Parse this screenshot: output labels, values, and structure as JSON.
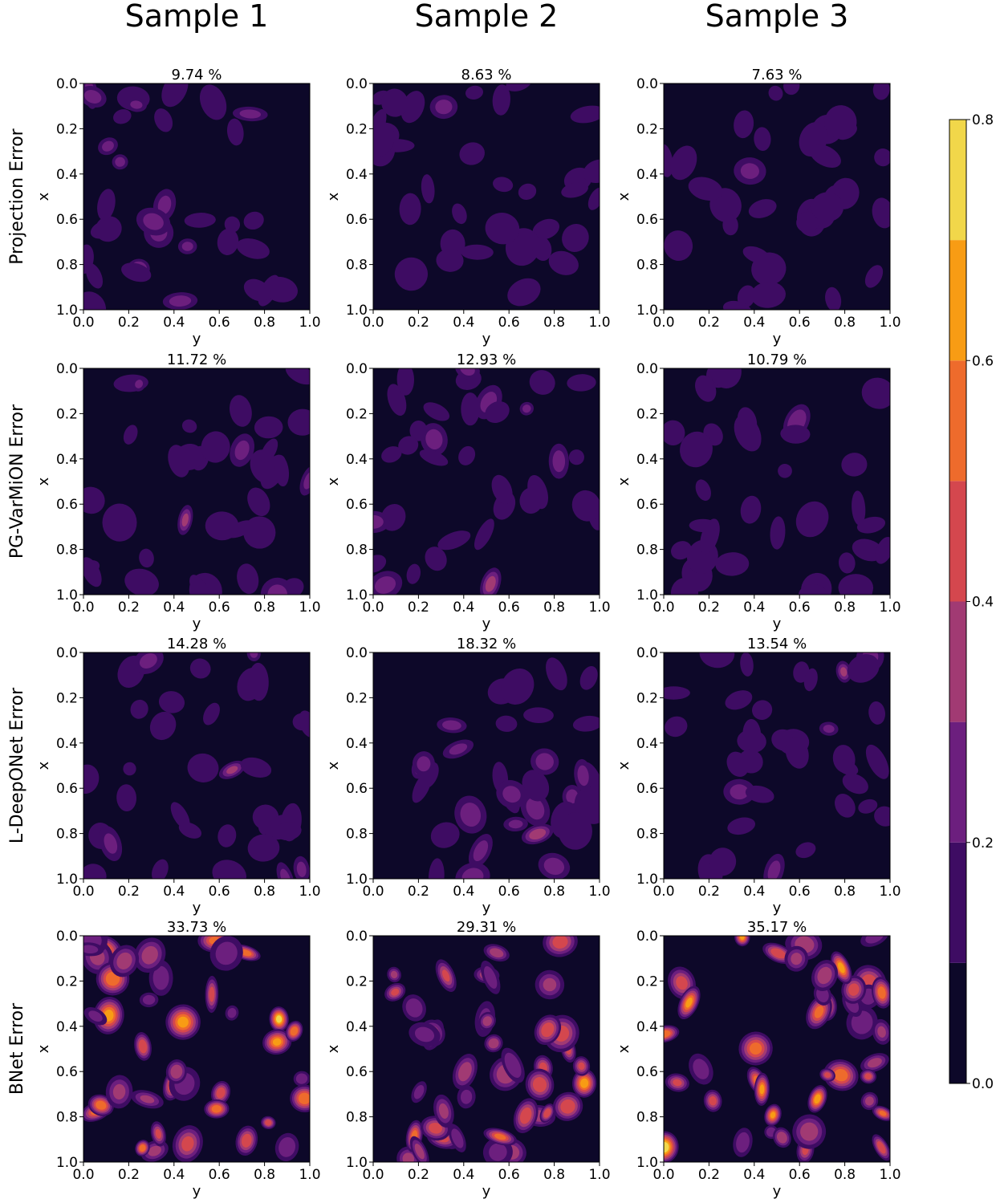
{
  "column_titles": [
    "Sample 1",
    "Sample 2",
    "Sample 3"
  ],
  "row_titles": [
    "Projection Error",
    "PG-VarMiON Error",
    "L-DeepONet Error",
    "BNet Error"
  ],
  "colorbar": {
    "ticks": [
      "0.0",
      "0.2",
      "0.4",
      "0.6",
      "0.8"
    ],
    "levels": [
      0.0,
      0.1,
      0.2,
      0.3,
      0.4,
      0.5,
      0.6,
      0.7,
      0.8
    ],
    "colors": [
      "#0d0829",
      "#3e0c63",
      "#6c1f7e",
      "#a13a73",
      "#d4474e",
      "#ee6b2c",
      "#f89c14",
      "#f1d74a",
      "#fcfda8"
    ],
    "range": [
      0.0,
      0.8
    ]
  },
  "chart_data": {
    "type": "heatmap",
    "xlabel": "y",
    "ylabel": "x",
    "xlim": [
      0.0,
      1.0
    ],
    "ylim": [
      1.0,
      0.0
    ],
    "x_ticks": [
      "0.0",
      "0.2",
      "0.4",
      "0.6",
      "0.8",
      "1.0"
    ],
    "y_ticks": [
      "0.0",
      "0.2",
      "0.4",
      "0.6",
      "0.8",
      "1.0"
    ],
    "panels": [
      {
        "row": "Projection Error",
        "column": "Sample 1",
        "title": "9.74 %",
        "error_percent": 9.74,
        "peak_value": 0.33
      },
      {
        "row": "Projection Error",
        "column": "Sample 2",
        "title": "8.63 %",
        "error_percent": 8.63,
        "peak_value": 0.22
      },
      {
        "row": "Projection Error",
        "column": "Sample 3",
        "title": "7.63 %",
        "error_percent": 7.63,
        "peak_value": 0.2
      },
      {
        "row": "PG-VarMiON Error",
        "column": "Sample 1",
        "title": "11.72 %",
        "error_percent": 11.72,
        "peak_value": 0.3
      },
      {
        "row": "PG-VarMiON Error",
        "column": "Sample 2",
        "title": "12.93 %",
        "error_percent": 12.93,
        "peak_value": 0.33
      },
      {
        "row": "PG-VarMiON Error",
        "column": "Sample 3",
        "title": "10.79 %",
        "error_percent": 10.79,
        "peak_value": 0.28
      },
      {
        "row": "L-DeepONet Error",
        "column": "Sample 1",
        "title": "14.28 %",
        "error_percent": 14.28,
        "peak_value": 0.3
      },
      {
        "row": "L-DeepONet Error",
        "column": "Sample 2",
        "title": "18.32 %",
        "error_percent": 18.32,
        "peak_value": 0.36
      },
      {
        "row": "L-DeepONet Error",
        "column": "Sample 3",
        "title": "13.54 %",
        "error_percent": 13.54,
        "peak_value": 0.3
      },
      {
        "row": "BNet Error",
        "column": "Sample 1",
        "title": "33.73 %",
        "error_percent": 33.73,
        "peak_value": 0.72
      },
      {
        "row": "BNet Error",
        "column": "Sample 2",
        "title": "29.31 %",
        "error_percent": 29.31,
        "peak_value": 0.64
      },
      {
        "row": "BNet Error",
        "column": "Sample 3",
        "title": "35.17 %",
        "error_percent": 35.17,
        "peak_value": 0.76
      }
    ]
  }
}
